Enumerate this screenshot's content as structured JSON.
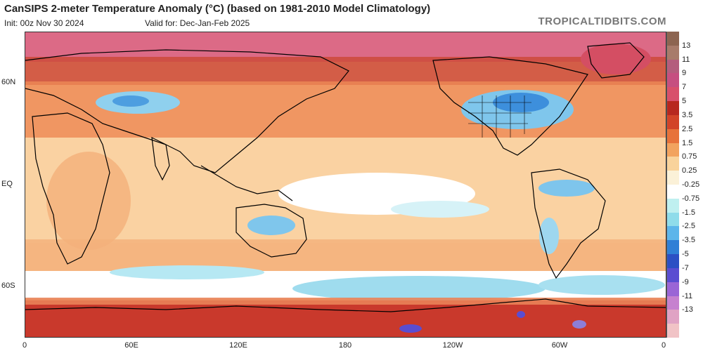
{
  "header": {
    "title": "CanSIPS 2-meter Temperature Anomaly (°C) (based on 1981-2010 Model Climatology)",
    "init": "Init: 00z Nov 30 2024",
    "valid": "Valid for: Dec-Jan-Feb 2025",
    "brand": "TROPICALTIDBITS.COM"
  },
  "axes": {
    "lat_labels": [
      "60N",
      "EQ",
      "60S"
    ],
    "lon_labels": [
      "0",
      "60E",
      "120E",
      "180",
      "120W",
      "60W",
      "0"
    ]
  },
  "colorbar": {
    "labels": [
      "13",
      "11",
      "9",
      "7",
      "5",
      "3.5",
      "2.5",
      "1.5",
      "0.75",
      "0.25",
      "-0.25",
      "-0.75",
      "-1.5",
      "-2.5",
      "-3.5",
      "-5",
      "-7",
      "-9",
      "-11",
      "-13"
    ],
    "colors": [
      "#8d6450",
      "#a87b6a",
      "#b45d7d",
      "#c64f80",
      "#d8506b",
      "#b7271f",
      "#d24328",
      "#e7723a",
      "#f2a35e",
      "#f9d39b",
      "#fbf1d8",
      "#ffffff",
      "#bff0f0",
      "#8fdcea",
      "#5cb5ea",
      "#2f7fd6",
      "#2b4fc4",
      "#5a4dd1",
      "#9a65d6",
      "#c681cf",
      "#e0a3c4",
      "#f1c3c6"
    ]
  },
  "colors": {
    "warm_light": "#fbd6a6",
    "warm_mid": "#f5a668",
    "warm_strong": "#e2643a",
    "warm_red": "#c8382b",
    "polar_pink": "#dc5a7a",
    "cold_light": "#a8e0f0",
    "cold_mid": "#64b7ea",
    "cold_strong": "#2f7fd6",
    "neutral": "#ffffff",
    "land_line": "#000000"
  }
}
